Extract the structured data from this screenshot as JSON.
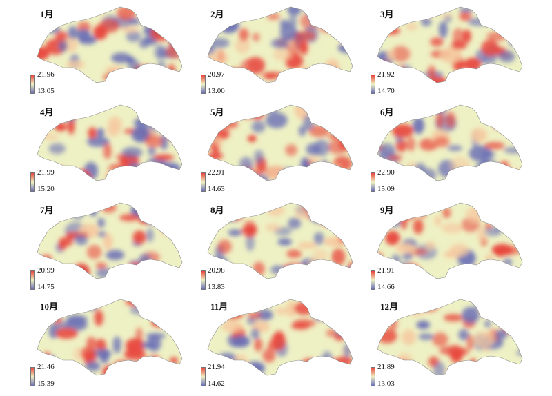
{
  "colors": {
    "high": "#e8453c",
    "mid": "#eef1c4",
    "low": "#6a6fb5"
  },
  "panels": [
    {
      "title": "1月",
      "max": "21.96",
      "min": "13.05"
    },
    {
      "title": "2月",
      "max": "20.97",
      "min": "13.00"
    },
    {
      "title": "3月",
      "max": "21.92",
      "min": "14.70"
    },
    {
      "title": "4月",
      "max": "21.99",
      "min": "15.20"
    },
    {
      "title": "5月",
      "max": "22.91",
      "min": "14.63"
    },
    {
      "title": "6月",
      "max": "22.90",
      "min": "15.09"
    },
    {
      "title": "7月",
      "max": "20.99",
      "min": "14.75"
    },
    {
      "title": "8月",
      "max": "20.98",
      "min": "13.83"
    },
    {
      "title": "9月",
      "max": "21.91",
      "min": "14.66"
    },
    {
      "title": "10月",
      "max": "21.46",
      "min": "15.39"
    },
    {
      "title": "11月",
      "max": "21.94",
      "min": "14.62"
    },
    {
      "title": "12月",
      "max": "21.89",
      "min": "13.03"
    }
  ]
}
